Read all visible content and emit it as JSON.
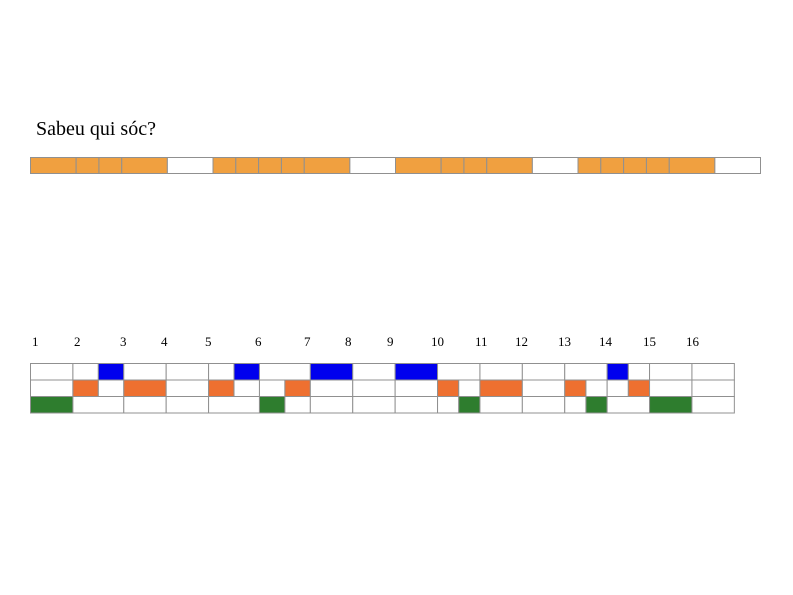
{
  "title": "Sabeu qui sóc?",
  "colors": {
    "syllable": "#f0a040",
    "top": "#0000ee",
    "middle": "#ee7030",
    "bottom": "#2e7d2e",
    "empty": "#ffffff",
    "border": "#909090"
  },
  "total_beats": 16,
  "beat_numbers": [
    "1",
    "2",
    "3",
    "4",
    "5",
    "6",
    "7",
    "8",
    "9",
    "10",
    "11",
    "12",
    "13",
    "14",
    "15",
    "16"
  ],
  "syllable_row": [
    [
      [
        0,
        1
      ],
      [
        1,
        1.5
      ],
      [
        1.5,
        2
      ],
      [
        2,
        3
      ]
    ],
    [
      [
        0,
        0.5
      ],
      [
        0.5,
        1
      ],
      [
        1,
        1.5
      ],
      [
        1.5,
        2
      ],
      [
        2,
        3
      ]
    ],
    [
      [
        0,
        1
      ],
      [
        1,
        1.5
      ],
      [
        1.5,
        2
      ],
      [
        2,
        3
      ]
    ],
    [
      [
        0,
        0.5
      ],
      [
        0.5,
        1
      ],
      [
        1,
        1.5
      ],
      [
        1.5,
        2
      ],
      [
        2,
        3
      ]
    ]
  ],
  "pattern_rows": [
    {
      "name": "top",
      "cells": [
        {
          "s": 0,
          "e": 1,
          "f": 0
        },
        {
          "s": 1,
          "e": 1.6,
          "f": 0
        },
        {
          "s": 1.6,
          "e": 2.2,
          "f": 1
        },
        {
          "s": 2.2,
          "e": 3.2,
          "f": 0
        },
        {
          "s": 3.2,
          "e": 4.2,
          "f": 0
        },
        {
          "s": 4.2,
          "e": 4.8,
          "f": 0
        },
        {
          "s": 4.8,
          "e": 5.4,
          "f": 1
        },
        {
          "s": 5.4,
          "e": 6.6,
          "f": 0
        },
        {
          "s": 6.6,
          "e": 7.6,
          "f": 1
        },
        {
          "s": 7.6,
          "e": 8.6,
          "f": 0
        },
        {
          "s": 8.6,
          "e": 9.6,
          "f": 1
        },
        {
          "s": 9.6,
          "e": 10.6,
          "f": 0
        },
        {
          "s": 10.6,
          "e": 11.6,
          "f": 0
        },
        {
          "s": 11.6,
          "e": 12.6,
          "f": 0
        },
        {
          "s": 12.6,
          "e": 13.6,
          "f": 0
        },
        {
          "s": 13.6,
          "e": 14.1,
          "f": 1
        },
        {
          "s": 14.1,
          "e": 14.6,
          "f": 0
        },
        {
          "s": 14.6,
          "e": 15.6,
          "f": 0
        },
        {
          "s": 15.6,
          "e": 16.6,
          "f": 0
        }
      ]
    },
    {
      "name": "middle",
      "cells": [
        {
          "s": 0,
          "e": 1,
          "f": 0
        },
        {
          "s": 1,
          "e": 1.6,
          "f": 1
        },
        {
          "s": 1.6,
          "e": 2.2,
          "f": 0
        },
        {
          "s": 2.2,
          "e": 3.2,
          "f": 1
        },
        {
          "s": 3.2,
          "e": 4.2,
          "f": 0
        },
        {
          "s": 4.2,
          "e": 4.8,
          "f": 1
        },
        {
          "s": 4.8,
          "e": 5.4,
          "f": 0
        },
        {
          "s": 5.4,
          "e": 6.0,
          "f": 0
        },
        {
          "s": 6.0,
          "e": 6.6,
          "f": 1
        },
        {
          "s": 6.6,
          "e": 7.6,
          "f": 0
        },
        {
          "s": 7.6,
          "e": 8.6,
          "f": 0
        },
        {
          "s": 8.6,
          "e": 9.6,
          "f": 0
        },
        {
          "s": 9.6,
          "e": 10.1,
          "f": 1
        },
        {
          "s": 10.1,
          "e": 10.6,
          "f": 0
        },
        {
          "s": 10.6,
          "e": 11.6,
          "f": 1
        },
        {
          "s": 11.6,
          "e": 12.6,
          "f": 0
        },
        {
          "s": 12.6,
          "e": 13.1,
          "f": 1
        },
        {
          "s": 13.1,
          "e": 13.6,
          "f": 0
        },
        {
          "s": 13.6,
          "e": 14.1,
          "f": 0
        },
        {
          "s": 14.1,
          "e": 14.6,
          "f": 1
        },
        {
          "s": 14.6,
          "e": 15.6,
          "f": 0
        },
        {
          "s": 15.6,
          "e": 16.6,
          "f": 0
        }
      ]
    },
    {
      "name": "bottom",
      "cells": [
        {
          "s": 0,
          "e": 1,
          "f": 1
        },
        {
          "s": 1,
          "e": 2.2,
          "f": 0
        },
        {
          "s": 2.2,
          "e": 3.2,
          "f": 0
        },
        {
          "s": 3.2,
          "e": 4.2,
          "f": 0
        },
        {
          "s": 4.2,
          "e": 5.4,
          "f": 0
        },
        {
          "s": 5.4,
          "e": 6.0,
          "f": 1
        },
        {
          "s": 6.0,
          "e": 6.6,
          "f": 0
        },
        {
          "s": 6.6,
          "e": 7.6,
          "f": 0
        },
        {
          "s": 7.6,
          "e": 8.6,
          "f": 0
        },
        {
          "s": 8.6,
          "e": 9.6,
          "f": 0
        },
        {
          "s": 9.6,
          "e": 10.1,
          "f": 0
        },
        {
          "s": 10.1,
          "e": 10.6,
          "f": 1
        },
        {
          "s": 10.6,
          "e": 11.6,
          "f": 0
        },
        {
          "s": 11.6,
          "e": 12.6,
          "f": 0
        },
        {
          "s": 12.6,
          "e": 13.1,
          "f": 0
        },
        {
          "s": 13.1,
          "e": 13.6,
          "f": 1
        },
        {
          "s": 13.6,
          "e": 14.6,
          "f": 0
        },
        {
          "s": 14.6,
          "e": 15.6,
          "f": 1
        },
        {
          "s": 15.6,
          "e": 16.6,
          "f": 0
        }
      ]
    }
  ]
}
